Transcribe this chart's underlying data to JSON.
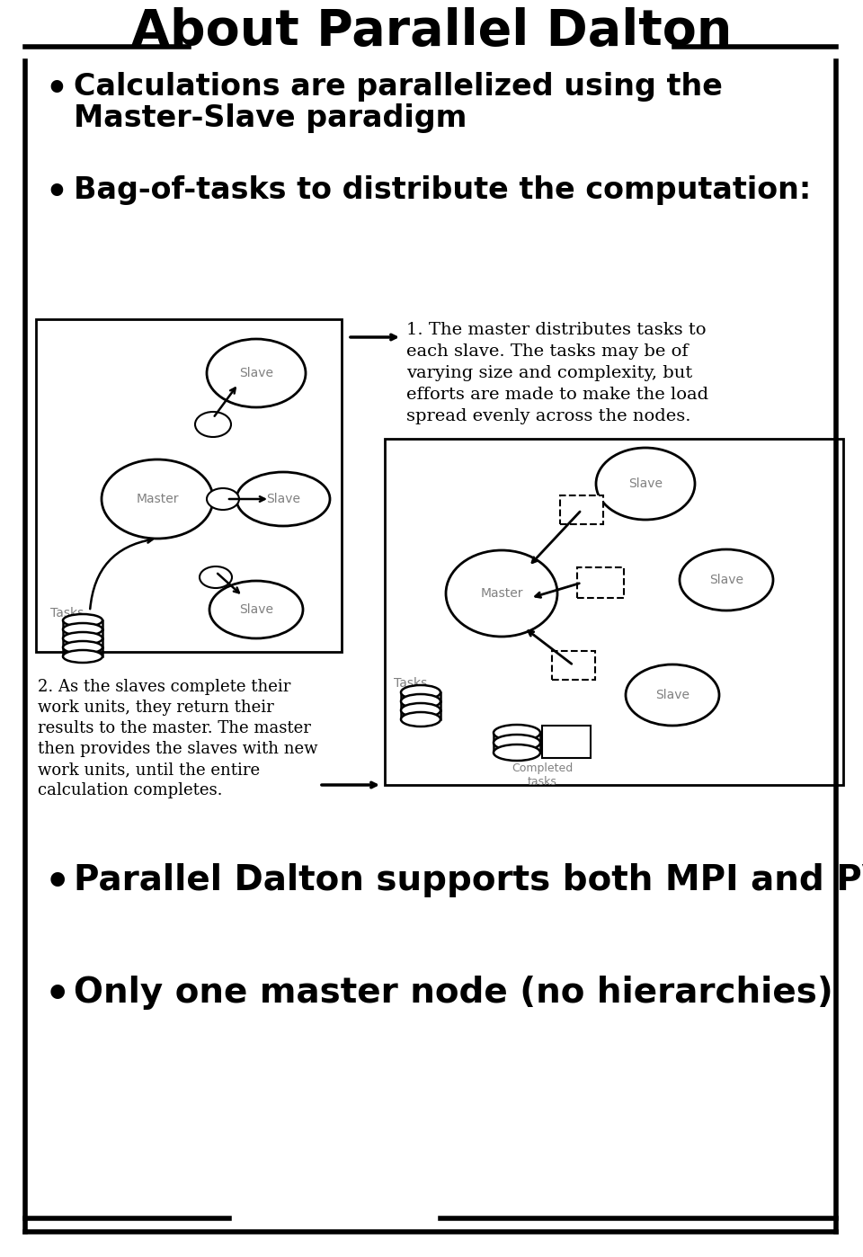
{
  "title": "About Parallel Dalton",
  "bullet1_line1": "Calculations are parallelized using the",
  "bullet1_line2": "Master-Slave paradigm",
  "bullet2": "Bag-of-tasks to distribute the computation:",
  "text1_line1": "1. The master distributes tasks to",
  "text1_line2": "each slave. The tasks may be of",
  "text1_line3": "varying size and complexity, but",
  "text1_line4": "efforts are made to make the load",
  "text1_line5": "spread evenly across the nodes.",
  "text2_line1": "2. As the slaves complete their",
  "text2_line2": "work units, they return their",
  "text2_line3": "results to the master. The master",
  "text2_line4": "then provides the slaves with new",
  "text2_line5": "work units, until the entire",
  "text2_line6": "calculation completes.",
  "bullet3": "Parallel Dalton supports both MPI and PVM",
  "bullet4": "Only one master node (no hierarchies)",
  "bg_color": "#ffffff",
  "text_color": "#000000"
}
